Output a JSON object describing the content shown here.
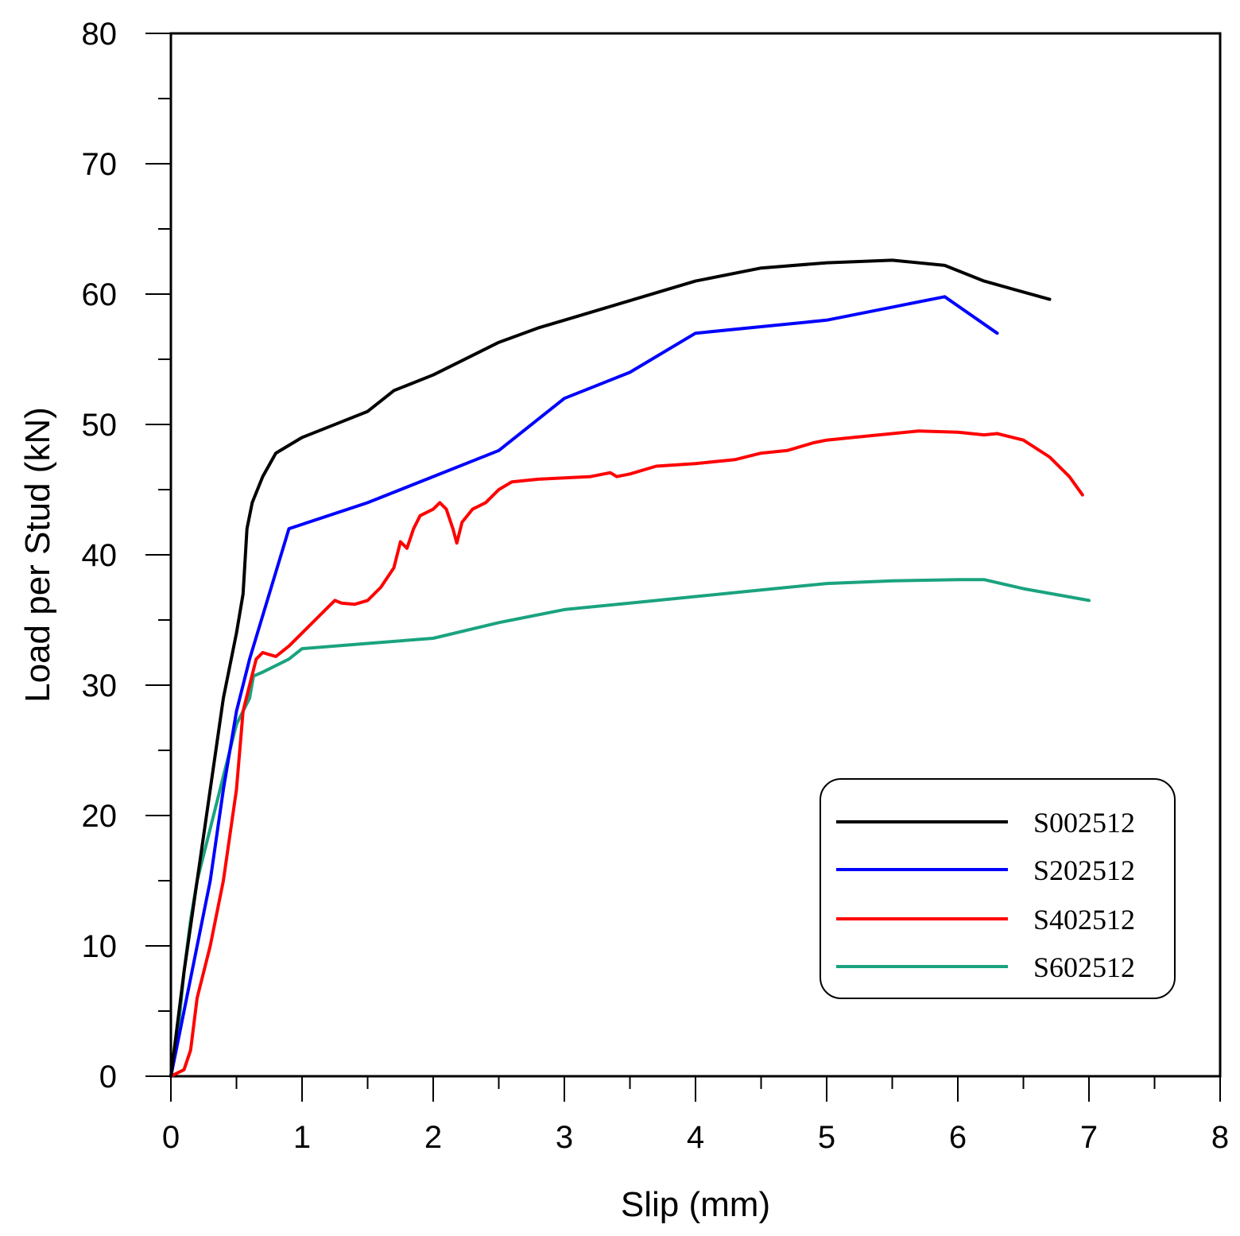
{
  "chart_data": {
    "type": "line",
    "title": "",
    "xlabel": "Slip (mm)",
    "ylabel": "Load per Stud (kN)",
    "xlim": [
      0,
      8
    ],
    "ylim": [
      0,
      80
    ],
    "xticks": [
      0,
      1,
      2,
      3,
      4,
      5,
      6,
      7,
      8
    ],
    "yticks": [
      0,
      10,
      20,
      30,
      40,
      50,
      60,
      70,
      80
    ],
    "xtick_labels": [
      "0",
      "1",
      "2",
      "3",
      "4",
      "5",
      "6",
      "7",
      "8"
    ],
    "ytick_labels": [
      "0",
      "10",
      "20",
      "30",
      "40",
      "50",
      "60",
      "70",
      "80"
    ],
    "grid": false,
    "legend_position": "bottom-right",
    "series": [
      {
        "name": "S002512",
        "color": "#000000",
        "points": [
          [
            0,
            0
          ],
          [
            0.1,
            8
          ],
          [
            0.2,
            15
          ],
          [
            0.3,
            22
          ],
          [
            0.4,
            29
          ],
          [
            0.5,
            34
          ],
          [
            0.55,
            37
          ],
          [
            0.58,
            42
          ],
          [
            0.62,
            44
          ],
          [
            0.7,
            46
          ],
          [
            0.8,
            47.8
          ],
          [
            1.0,
            49
          ],
          [
            1.2,
            49.8
          ],
          [
            1.5,
            51
          ],
          [
            1.7,
            52.6
          ],
          [
            2.0,
            53.8
          ],
          [
            2.2,
            54.8
          ],
          [
            2.5,
            56.3
          ],
          [
            2.8,
            57.4
          ],
          [
            3.0,
            58
          ],
          [
            3.5,
            59.5
          ],
          [
            4.0,
            61
          ],
          [
            4.5,
            62
          ],
          [
            5.0,
            62.4
          ],
          [
            5.5,
            62.6
          ],
          [
            5.9,
            62.2
          ],
          [
            6.2,
            61
          ],
          [
            6.7,
            59.6
          ]
        ]
      },
      {
        "name": "S202512",
        "color": "#0000ff",
        "points": [
          [
            0,
            0
          ],
          [
            0.05,
            2.5
          ],
          [
            0.2,
            10
          ],
          [
            0.3,
            15
          ],
          [
            0.4,
            22
          ],
          [
            0.5,
            28
          ],
          [
            0.6,
            32
          ],
          [
            0.9,
            42
          ],
          [
            1.5,
            44
          ],
          [
            2.0,
            46
          ],
          [
            2.5,
            48
          ],
          [
            3.0,
            52
          ],
          [
            3.5,
            54
          ],
          [
            4.0,
            57
          ],
          [
            4.5,
            57.5
          ],
          [
            5.0,
            58
          ],
          [
            5.5,
            59
          ],
          [
            5.9,
            59.8
          ],
          [
            6.3,
            57
          ]
        ]
      },
      {
        "name": "S402512",
        "color": "#ff0000",
        "points": [
          [
            0,
            0
          ],
          [
            0.1,
            0.5
          ],
          [
            0.15,
            2
          ],
          [
            0.2,
            6
          ],
          [
            0.3,
            10
          ],
          [
            0.4,
            15
          ],
          [
            0.5,
            22
          ],
          [
            0.55,
            28
          ],
          [
            0.6,
            30
          ],
          [
            0.65,
            32
          ],
          [
            0.7,
            32.5
          ],
          [
            0.8,
            32.2
          ],
          [
            0.9,
            33
          ],
          [
            1.0,
            34
          ],
          [
            1.1,
            35
          ],
          [
            1.2,
            36
          ],
          [
            1.25,
            36.5
          ],
          [
            1.3,
            36.3
          ],
          [
            1.4,
            36.2
          ],
          [
            1.5,
            36.5
          ],
          [
            1.6,
            37.5
          ],
          [
            1.7,
            39
          ],
          [
            1.75,
            41
          ],
          [
            1.8,
            40.5
          ],
          [
            1.85,
            42
          ],
          [
            1.9,
            43
          ],
          [
            2.0,
            43.5
          ],
          [
            2.05,
            44
          ],
          [
            2.1,
            43.5
          ],
          [
            2.15,
            42
          ],
          [
            2.18,
            40.9
          ],
          [
            2.22,
            42.5
          ],
          [
            2.3,
            43.5
          ],
          [
            2.4,
            44
          ],
          [
            2.5,
            45
          ],
          [
            2.6,
            45.6
          ],
          [
            2.8,
            45.8
          ],
          [
            3.0,
            45.9
          ],
          [
            3.2,
            46
          ],
          [
            3.35,
            46.3
          ],
          [
            3.4,
            46
          ],
          [
            3.5,
            46.2
          ],
          [
            3.7,
            46.8
          ],
          [
            4.0,
            47
          ],
          [
            4.3,
            47.3
          ],
          [
            4.5,
            47.8
          ],
          [
            4.7,
            48
          ],
          [
            4.9,
            48.6
          ],
          [
            5.0,
            48.8
          ],
          [
            5.2,
            49
          ],
          [
            5.5,
            49.3
          ],
          [
            5.7,
            49.5
          ],
          [
            6.0,
            49.4
          ],
          [
            6.2,
            49.2
          ],
          [
            6.3,
            49.3
          ],
          [
            6.5,
            48.8
          ],
          [
            6.7,
            47.5
          ],
          [
            6.85,
            46
          ],
          [
            6.95,
            44.6
          ]
        ]
      },
      {
        "name": "S602512",
        "color": "#1aa37f",
        "points": [
          [
            0,
            0
          ],
          [
            0.05,
            3
          ],
          [
            0.1,
            8
          ],
          [
            0.15,
            12
          ],
          [
            0.2,
            15
          ],
          [
            0.3,
            19
          ],
          [
            0.4,
            23
          ],
          [
            0.5,
            27
          ],
          [
            0.6,
            29
          ],
          [
            0.63,
            30.7
          ],
          [
            0.7,
            31
          ],
          [
            0.8,
            31.5
          ],
          [
            0.9,
            32
          ],
          [
            1.0,
            32.8
          ],
          [
            1.5,
            33.2
          ],
          [
            2.0,
            33.6
          ],
          [
            2.5,
            34.8
          ],
          [
            3.0,
            35.8
          ],
          [
            3.5,
            36.3
          ],
          [
            4.0,
            36.8
          ],
          [
            4.5,
            37.3
          ],
          [
            5.0,
            37.8
          ],
          [
            5.5,
            38
          ],
          [
            6.0,
            38.1
          ],
          [
            6.2,
            38.1
          ],
          [
            6.5,
            37.4
          ],
          [
            7.0,
            36.5
          ]
        ]
      }
    ]
  }
}
